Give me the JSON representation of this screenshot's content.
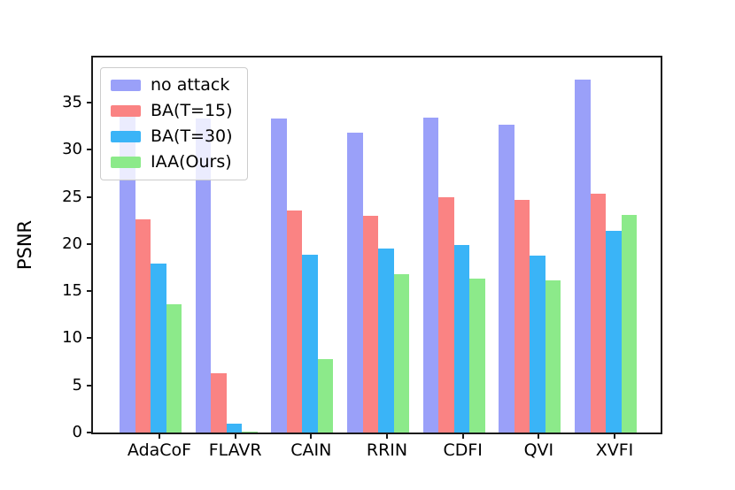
{
  "chart_data": {
    "type": "bar",
    "title": "",
    "xlabel": "",
    "ylabel": "PSNR",
    "ylim": [
      0,
      39.8
    ],
    "yticks": [
      0,
      5,
      10,
      15,
      20,
      25,
      30,
      35
    ],
    "grid": false,
    "legend_position": "upper left",
    "categories": [
      "AdaCoF",
      "FLAVR",
      "CAIN",
      "RRIN",
      "CDFI",
      "QVI",
      "XVFI"
    ],
    "series": [
      {
        "name": "no attack",
        "color": "#9aa0f9",
        "values": [
          33.6,
          33.3,
          33.3,
          31.8,
          33.4,
          32.7,
          37.5
        ]
      },
      {
        "name": "BA(T=15)",
        "color": "#fa8383",
        "values": [
          22.6,
          6.3,
          23.6,
          23.0,
          25.0,
          24.7,
          25.3
        ]
      },
      {
        "name": "BA(T=30)",
        "color": "#3ab4f7",
        "values": [
          17.9,
          0.9,
          18.9,
          19.5,
          19.9,
          18.8,
          21.4
        ]
      },
      {
        "name": "IAA(Ours)",
        "color": "#8cea8a",
        "values": [
          13.6,
          0.1,
          7.8,
          16.8,
          16.3,
          16.1,
          23.1
        ]
      }
    ]
  },
  "layout_colors": {
    "spine": "#1a1a1a",
    "background": "#ffffff"
  }
}
